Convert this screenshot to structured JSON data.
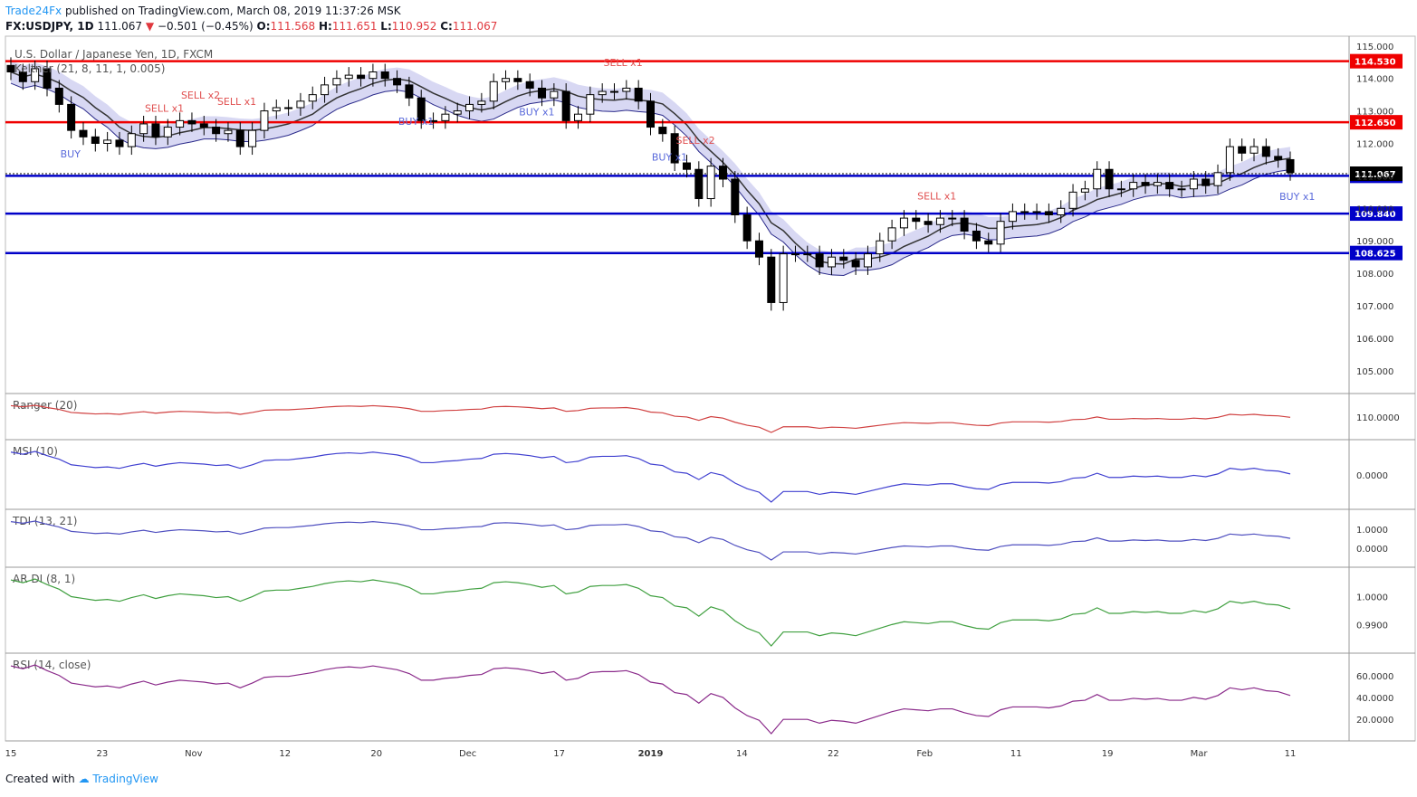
{
  "header": {
    "brand": "Trade24Fx",
    "published": "published on TradingView.com, March 08, 2019 11:37:26 MSK",
    "symbol": "FX:USDJPY, 1D",
    "last": "111.067",
    "change": "−0.501 (−0.45%)",
    "ohlc": {
      "o_label": "O:",
      "o": "111.568",
      "h_label": "H:",
      "h": "111.651",
      "l_label": "L:",
      "l": "110.952",
      "c_label": "C:",
      "c": "111.067"
    }
  },
  "colors": {
    "up": "#ffffff",
    "down": "#000000",
    "red": "#ef0000",
    "blue": "#0000c8",
    "pink": "#f8c8cc",
    "lavender": "#c8c8ee",
    "green": "#c8e6c0"
  },
  "chart_data": [
    {
      "type": "candlestick",
      "title": "U.S. Dollar / Japanese Yen, 1D, FXCM",
      "indicator_label": "Keltner (21, 8, 11, 1, 0.005)",
      "ylim": [
        104.3,
        115.3
      ],
      "y_ticks": [
        "105.000",
        "106.000",
        "107.000",
        "108.000",
        "109.000",
        "110.000",
        "111.000",
        "112.000",
        "113.000",
        "114.000",
        "115.000"
      ],
      "x_ticks": [
        "15",
        "23",
        "Nov",
        "12",
        "20",
        "Dec",
        "17",
        "2019",
        "14",
        "22",
        "Feb",
        "11",
        "19",
        "Mar",
        "11"
      ],
      "levels": [
        {
          "value": 114.53,
          "label": "114.530",
          "color": "red"
        },
        {
          "value": 112.65,
          "label": "112.650",
          "color": "red"
        },
        {
          "value": 111.002,
          "label": "111.002",
          "color": "blue"
        },
        {
          "value": 109.84,
          "label": "109.840",
          "color": "blue"
        },
        {
          "value": 108.625,
          "label": "108.625",
          "color": "blue"
        }
      ],
      "last_price": {
        "value": 111.067,
        "label": "111.067"
      },
      "annotations": [
        "BUY",
        "SELL x1",
        "SELL x2",
        "SELL x1",
        "BUY x1",
        "BUY x1",
        "SELL x1",
        "BUY x1",
        "SELL x2",
        "SELL x1",
        "BUY x1"
      ],
      "close": [
        114.2,
        113.9,
        114.3,
        113.7,
        113.2,
        112.4,
        112.2,
        112.0,
        112.1,
        111.9,
        112.3,
        112.6,
        112.2,
        112.5,
        112.7,
        112.6,
        112.5,
        112.3,
        112.4,
        111.9,
        112.4,
        113.0,
        113.1,
        113.1,
        113.3,
        113.5,
        113.8,
        114.0,
        114.1,
        114.0,
        114.2,
        114.0,
        113.8,
        113.4,
        112.7,
        112.7,
        112.9,
        113.0,
        113.2,
        113.3,
        113.9,
        114.0,
        113.9,
        113.7,
        113.4,
        113.6,
        112.7,
        112.9,
        113.5,
        113.6,
        113.6,
        113.7,
        113.3,
        112.5,
        112.3,
        111.4,
        111.2,
        110.3,
        111.3,
        110.9,
        109.8,
        109.0,
        108.5,
        107.1,
        108.6,
        108.6,
        108.6,
        108.2,
        108.5,
        108.4,
        108.2,
        108.6,
        109.0,
        109.4,
        109.7,
        109.6,
        109.5,
        109.7,
        109.7,
        109.3,
        109.0,
        108.9,
        109.6,
        109.9,
        109.9,
        109.9,
        109.8,
        110.0,
        110.5,
        110.6,
        111.2,
        110.6,
        110.6,
        110.8,
        110.7,
        110.8,
        110.6,
        110.6,
        110.9,
        110.7,
        111.1,
        111.9,
        111.7,
        111.9,
        111.6,
        111.5,
        111.1
      ],
      "ranger": {
        "label": "Ranger (20)",
        "y_tick": "110.0000"
      },
      "msi": {
        "label": "MSI (10)",
        "y_tick": "0.0000"
      },
      "tdi": {
        "label": "TDI (13, 21)",
        "y_ticks": [
          "1.0000",
          "0.0000"
        ]
      },
      "ardi": {
        "label": "AR DI (8, 1)",
        "y_ticks": [
          "1.0000",
          "0.9900"
        ]
      },
      "rsi": {
        "label": "RSI (14, close)",
        "y_ticks": [
          "60.0000",
          "40.0000",
          "20.0000"
        ]
      }
    }
  ],
  "footer": {
    "created": "Created with",
    "brand": "TradingView"
  }
}
